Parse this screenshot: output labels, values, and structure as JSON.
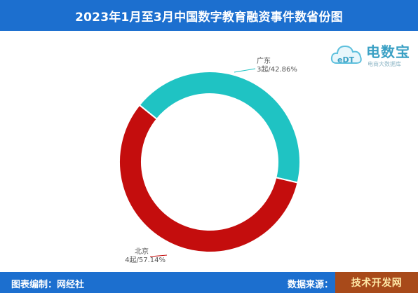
{
  "header": {
    "title": "2023年1月至3月中国数字教育融资事件数省份图"
  },
  "footer": {
    "credit_label": "图表编制：",
    "credit_value": "网经社",
    "source_label": "数据来源：",
    "corner_watermark": "技术开发网"
  },
  "logo": {
    "brand_text": "电数宝",
    "sub_text": "电商大数据库",
    "badge_text": "eDT"
  },
  "colors": {
    "header_bg": "#1c6fcf",
    "guangdong": "#1fc3c3",
    "beijing": "#c40d0d"
  },
  "chart_data": {
    "type": "pie",
    "donut": true,
    "title": "",
    "slices": [
      {
        "name": "广东",
        "count_label": "3起",
        "value": 3,
        "percent_label": "42.86%"
      },
      {
        "name": "北京",
        "count_label": "4起",
        "value": 4,
        "percent_label": "57.14%"
      }
    ],
    "labels": [
      {
        "name": "广东",
        "detail": "3起/42.86%"
      },
      {
        "name": "北京",
        "detail": "4起/57.14%"
      }
    ]
  }
}
